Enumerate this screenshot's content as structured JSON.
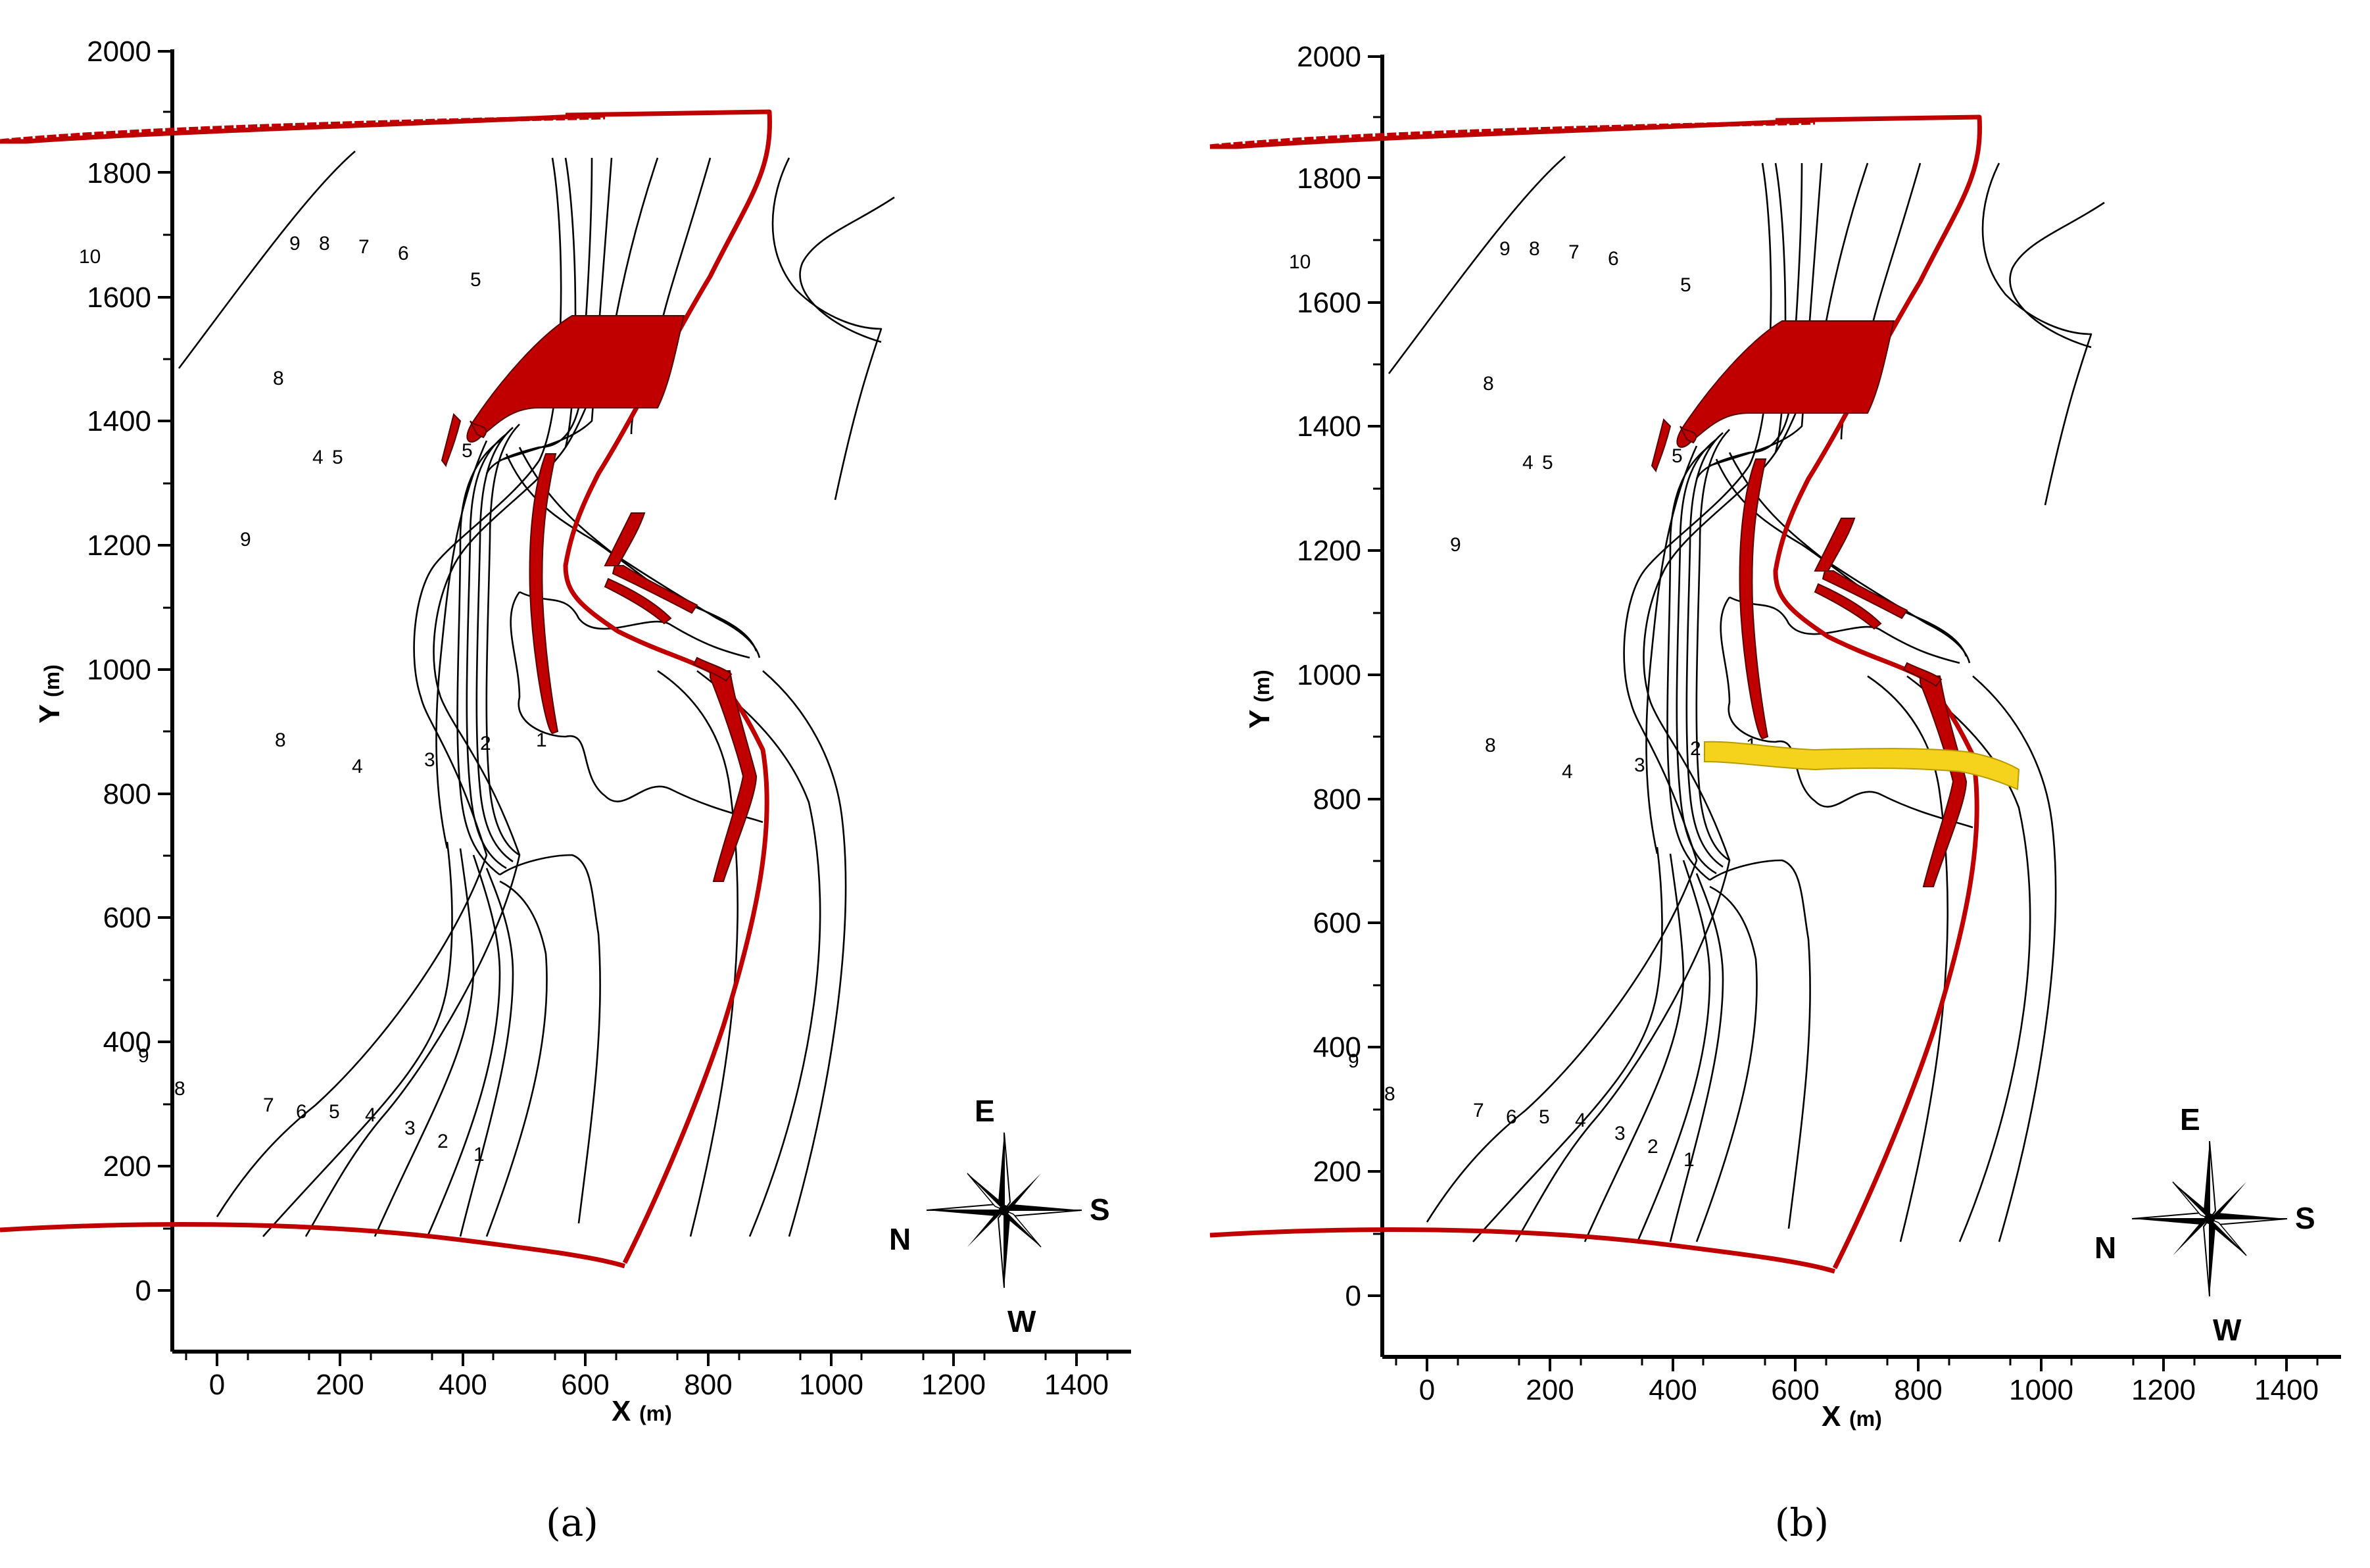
{
  "figure": {
    "x_axis": {
      "title": "X",
      "unit": "(m)",
      "ticks": [
        "0",
        "200",
        "400",
        "600",
        "800",
        "1000",
        "1200",
        "1400"
      ]
    },
    "y_axis": {
      "title": "Y",
      "unit": "(m)",
      "ticks": [
        "0",
        "200",
        "400",
        "600",
        "800",
        "1000",
        "1200",
        "1400",
        "1600",
        "1800",
        "2000"
      ]
    },
    "contour_level_labels": [
      "1",
      "2",
      "3",
      "4",
      "5",
      "6",
      "7",
      "8",
      "9",
      "10"
    ],
    "compass": {
      "top": "E",
      "right": "S",
      "left": "N",
      "bottom": "W"
    },
    "colors": {
      "boundary": "#c00000",
      "bridge": "#f5d21c",
      "contour": "#000000"
    }
  },
  "panels": [
    {
      "label": "(a)",
      "bold_letter": "a",
      "has_bridge": false
    },
    {
      "label": "(b)",
      "bold_letter": "b",
      "has_bridge": true
    }
  ]
}
